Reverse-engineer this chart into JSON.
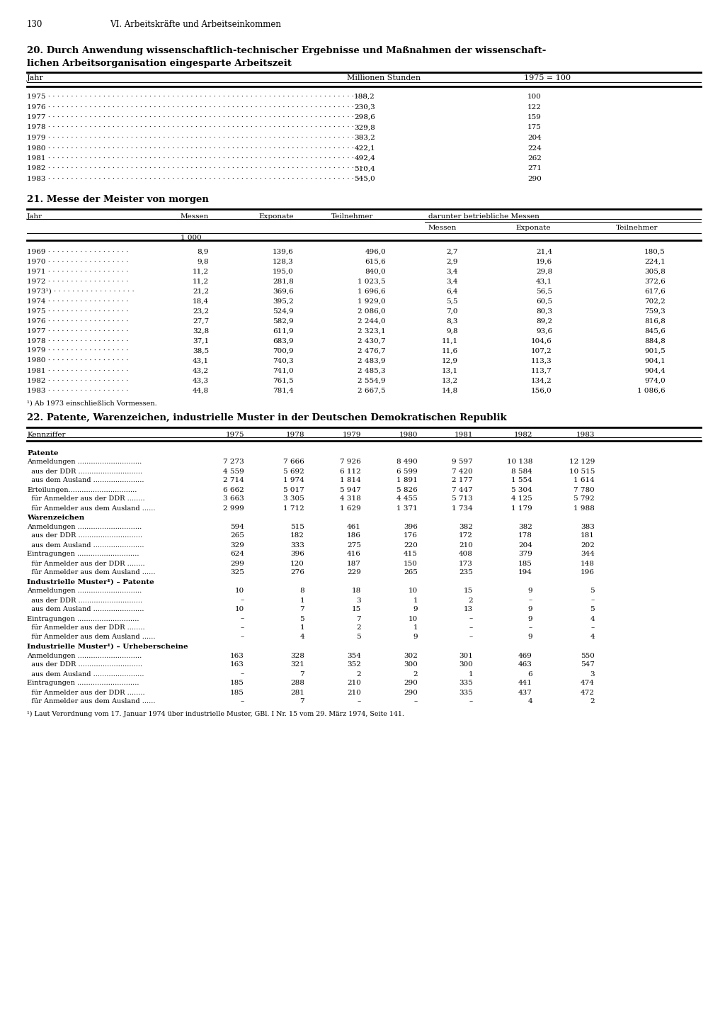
{
  "page_number": "130",
  "chapter_header": "VI. Arbeitskäfte und Arbeitseinkommen",
  "chapter_header2": "VI. Arbeitskräfte und Arbeitseinkommen",
  "section20_title1": "20. Durch Anwendung wissenschaftlich-technischer Ergebnisse und Maßnahmen der wissenschaft-",
  "section20_title2": "lichen Arbeitsorganisation eingesparte Arbeitszeit",
  "section20_col1": "Jahr",
  "section20_col2": "Millionen Stunden",
  "section20_col3": "1975 = 100",
  "section20_data": [
    [
      "1975",
      "188,2",
      "100"
    ],
    [
      "1976",
      "230,3",
      "122"
    ],
    [
      "1977",
      "298,6",
      "159"
    ],
    [
      "1978",
      "329,8",
      "175"
    ],
    [
      "1979",
      "383,2",
      "204"
    ],
    [
      "1980",
      "422,1",
      "224"
    ],
    [
      "1981",
      "492,4",
      "262"
    ],
    [
      "1982",
      "510,4",
      "271"
    ],
    [
      "1983",
      "545,0",
      "290"
    ]
  ],
  "section21_title": "21. Messe der Meister von morgen",
  "section21_unit": "1 000",
  "section21_data": [
    [
      "1969",
      "8,9",
      "139,6",
      "496,0",
      "2,7",
      "21,4",
      "180,5"
    ],
    [
      "1970",
      "9,8",
      "128,3",
      "615,6",
      "2,9",
      "19,6",
      "224,1"
    ],
    [
      "1971",
      "11,2",
      "195,0",
      "840,0",
      "3,4",
      "29,8",
      "305,8"
    ],
    [
      "1972",
      "11,2",
      "281,8",
      "1 023,5",
      "3,4",
      "43,1",
      "372,6"
    ],
    [
      "1973¹)",
      "21,2",
      "369,6",
      "1 696,6",
      "6,4",
      "56,5",
      "617,6"
    ],
    [
      "1974",
      "18,4",
      "395,2",
      "1 929,0",
      "5,5",
      "60,5",
      "702,2"
    ],
    [
      "1975",
      "23,2",
      "524,9",
      "2 086,0",
      "7,0",
      "80,3",
      "759,3"
    ],
    [
      "1976",
      "27,7",
      "582,9",
      "2 244,0",
      "8,3",
      "89,2",
      "816,8"
    ],
    [
      "1977",
      "32,8",
      "611,9",
      "2 323,1",
      "9,8",
      "93,6",
      "845,6"
    ],
    [
      "1978",
      "37,1",
      "683,9",
      "2 430,7",
      "11,1",
      "104,6",
      "884,8"
    ],
    [
      "1979",
      "38,5",
      "700,9",
      "2 476,7",
      "11,6",
      "107,2",
      "901,5"
    ],
    [
      "1980",
      "43,1",
      "740,3",
      "2 483,9",
      "12,9",
      "113,3",
      "904,1"
    ],
    [
      "1981",
      "43,2",
      "741,0",
      "2 485,3",
      "13,1",
      "113,7",
      "904,4"
    ],
    [
      "1982",
      "43,3",
      "761,5",
      "2 554,9",
      "13,2",
      "134,2",
      "974,0"
    ],
    [
      "1983",
      "44,8",
      "781,4",
      "2 667,5",
      "14,8",
      "156,0",
      "1 086,6"
    ]
  ],
  "section21_footnote": "¹) Ab 1973 einschließlich Vormessen.",
  "section22_title": "22. Patente, Warenzeichen, industrielle Muster in der Deutschen Demokratischen Republik",
  "section22_years": [
    "Kennziffer",
    "1975",
    "1978",
    "1979",
    "1980",
    "1981",
    "1982",
    "1983"
  ],
  "section22_data": [
    [
      "Patente",
      "",
      "",
      "",
      "",
      "",
      "",
      ""
    ],
    [
      "Anmeldungen .............................",
      "7 273",
      "7 666",
      "7 926",
      "8 490",
      "9 597",
      "10 138",
      "12 129"
    ],
    [
      "  aus der DDR .............................",
      "4 559",
      "5 692",
      "6 112",
      "6 599",
      "7 420",
      "8 584",
      "10 515"
    ],
    [
      "  aus dem Ausland .......................",
      "2 714",
      "1 974",
      "1 814",
      "1 891",
      "2 177",
      "1 554",
      "1 614"
    ],
    [
      "Erteilungen...............................",
      "6 662",
      "5 017",
      "5 947",
      "5 826",
      "7 447",
      "5 304",
      "7 780"
    ],
    [
      "  für Anmelder aus der DDR ........",
      "3 663",
      "3 305",
      "4 318",
      "4 455",
      "5 713",
      "4 125",
      "5 792"
    ],
    [
      "  für Anmelder aus dem Ausland ......",
      "2 999",
      "1 712",
      "1 629",
      "1 371",
      "1 734",
      "1 179",
      "1 988"
    ],
    [
      "Warenzeichen",
      "",
      "",
      "",
      "",
      "",
      "",
      ""
    ],
    [
      "Anmeldungen .............................",
      "594",
      "515",
      "461",
      "396",
      "382",
      "382",
      "383"
    ],
    [
      "  aus der DDR .............................",
      "265",
      "182",
      "186",
      "176",
      "172",
      "178",
      "181"
    ],
    [
      "  aus dem Ausland .......................",
      "329",
      "333",
      "275",
      "220",
      "210",
      "204",
      "202"
    ],
    [
      "Eintragungen ............................",
      "624",
      "396",
      "416",
      "415",
      "408",
      "379",
      "344"
    ],
    [
      "  für Anmelder aus der DDR ........",
      "299",
      "120",
      "187",
      "150",
      "173",
      "185",
      "148"
    ],
    [
      "  für Anmelder aus dem Ausland ......",
      "325",
      "276",
      "229",
      "265",
      "235",
      "194",
      "196"
    ],
    [
      "Industrielle Muster¹) – Patente",
      "",
      "",
      "",
      "",
      "",
      "",
      ""
    ],
    [
      "Anmeldungen .............................",
      "10",
      "8",
      "18",
      "10",
      "15",
      "9",
      "5"
    ],
    [
      "  aus der DDR .............................",
      "–",
      "1",
      "3",
      "1",
      "2",
      "–",
      "–"
    ],
    [
      "  aus dem Ausland .......................",
      "10",
      "7",
      "15",
      "9",
      "13",
      "9",
      "5"
    ],
    [
      "Eintragungen ............................",
      "–",
      "5",
      "7",
      "10",
      "–",
      "9",
      "4"
    ],
    [
      "  für Anmelder aus der DDR ........",
      "–",
      "1",
      "2",
      "1",
      "–",
      "–",
      "–"
    ],
    [
      "  für Anmelder aus dem Ausland ......",
      "–",
      "4",
      "5",
      "9",
      "–",
      "9",
      "4"
    ],
    [
      "Industrielle Muster¹) – Urheberscheine",
      "",
      "",
      "",
      "",
      "",
      "",
      ""
    ],
    [
      "Anmeldungen .............................",
      "163",
      "328",
      "354",
      "302",
      "301",
      "469",
      "550"
    ],
    [
      "  aus der DDR .............................",
      "163",
      "321",
      "352",
      "300",
      "300",
      "463",
      "547"
    ],
    [
      "  aus dem Ausland .......................",
      "–",
      "7",
      "2",
      "2",
      "1",
      "6",
      "3"
    ],
    [
      "Eintragungen ............................",
      "185",
      "288",
      "210",
      "290",
      "335",
      "441",
      "474"
    ],
    [
      "  für Anmelder aus der DDR ........",
      "185",
      "281",
      "210",
      "290",
      "335",
      "437",
      "472"
    ],
    [
      "  für Anmelder aus dem Ausland ......",
      "–",
      "7",
      "–",
      "–",
      "–",
      "4",
      "2"
    ]
  ],
  "section22_footnote": "¹) Laut Verordnung vom 17. Januar 1974 über industrielle Muster, GBl. I Nr. 15 vom 29. März 1974, Seite 141."
}
